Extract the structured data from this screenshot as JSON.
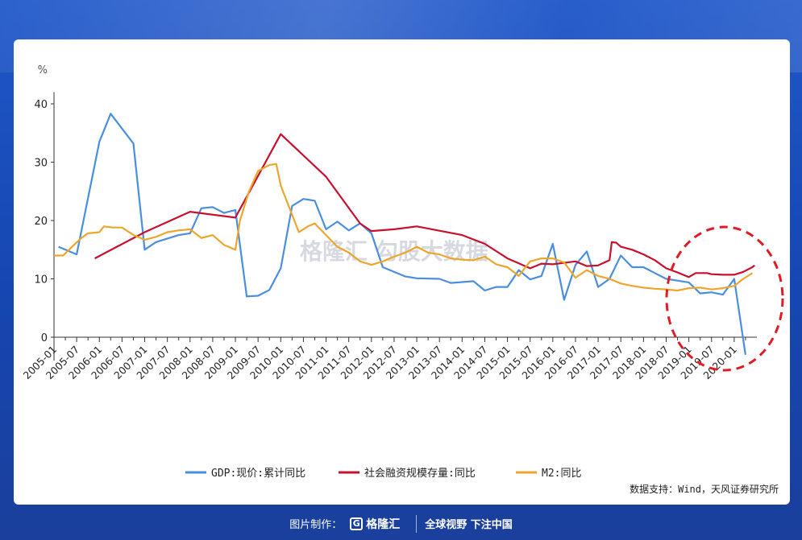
{
  "chart_data": {
    "type": "line",
    "y_unit": "%",
    "ylim": [
      -4,
      42
    ],
    "yticks": [
      0,
      10,
      20,
      30,
      40
    ],
    "x_ticks": [
      "2005-01",
      "2005-07",
      "2006-01",
      "2006-07",
      "2007-01",
      "2007-07",
      "2008-01",
      "2008-07",
      "2009-01",
      "2009-07",
      "2010-01",
      "2010-07",
      "2011-01",
      "2011-07",
      "2012-01",
      "2012-07",
      "2013-01",
      "2013-07",
      "2014-01",
      "2014-07",
      "2015-01",
      "2015-07",
      "2016-01",
      "2016-07",
      "2017-01",
      "2017-07",
      "2018-01",
      "2018-07",
      "2019-01",
      "2019-07",
      "2020-01"
    ],
    "series": [
      {
        "name": "GDP:现价:累计同比",
        "color": "#4a8fdf",
        "points": [
          [
            2005.1,
            15.5
          ],
          [
            2005.5,
            14.2
          ],
          [
            2006.0,
            33.5
          ],
          [
            2006.25,
            38.3
          ],
          [
            2006.75,
            33.2
          ],
          [
            2007.0,
            15.0
          ],
          [
            2007.25,
            16.3
          ],
          [
            2007.75,
            17.5
          ],
          [
            2008.0,
            17.8
          ],
          [
            2008.25,
            22.1
          ],
          [
            2008.5,
            22.3
          ],
          [
            2008.75,
            21.3
          ],
          [
            2009.0,
            21.8
          ],
          [
            2009.25,
            7.0
          ],
          [
            2009.5,
            7.1
          ],
          [
            2009.75,
            8.1
          ],
          [
            2010.0,
            11.8
          ],
          [
            2010.25,
            22.5
          ],
          [
            2010.5,
            23.7
          ],
          [
            2010.75,
            23.4
          ],
          [
            2011.0,
            18.5
          ],
          [
            2011.25,
            19.8
          ],
          [
            2011.5,
            18.3
          ],
          [
            2011.75,
            19.5
          ],
          [
            2012.0,
            17.8
          ],
          [
            2012.25,
            12.0
          ],
          [
            2012.75,
            10.4
          ],
          [
            2013.0,
            10.1
          ],
          [
            2013.5,
            10.0
          ],
          [
            2013.75,
            9.3
          ],
          [
            2014.25,
            9.6
          ],
          [
            2014.5,
            8.0
          ],
          [
            2014.75,
            8.6
          ],
          [
            2015.0,
            8.6
          ],
          [
            2015.25,
            11.5
          ],
          [
            2015.5,
            9.9
          ],
          [
            2015.75,
            10.5
          ],
          [
            2016.0,
            16.0
          ],
          [
            2016.25,
            6.4
          ],
          [
            2016.5,
            12.4
          ],
          [
            2016.75,
            14.7
          ],
          [
            2017.0,
            8.6
          ],
          [
            2017.25,
            10.0
          ],
          [
            2017.5,
            14.0
          ],
          [
            2017.75,
            12.0
          ],
          [
            2018.0,
            12.0
          ],
          [
            2018.25,
            11.0
          ],
          [
            2018.5,
            10.0
          ],
          [
            2018.75,
            9.7
          ],
          [
            2019.0,
            9.4
          ],
          [
            2019.25,
            7.5
          ],
          [
            2019.5,
            7.7
          ],
          [
            2019.75,
            7.3
          ],
          [
            2020.0,
            10.0
          ],
          [
            2020.25,
            -3.0
          ]
        ]
      },
      {
        "name": "社会融资规模存量:同比",
        "color": "#c8102e",
        "points": [
          [
            2005.9,
            13.5
          ],
          [
            2007.0,
            18.0
          ],
          [
            2008.0,
            21.5
          ],
          [
            2009.0,
            20.5
          ],
          [
            2010.0,
            34.8
          ],
          [
            2011.0,
            27.5
          ],
          [
            2011.75,
            19.5
          ],
          [
            2012.0,
            18.2
          ],
          [
            2012.5,
            18.5
          ],
          [
            2013.0,
            19.0
          ],
          [
            2014.0,
            17.5
          ],
          [
            2014.5,
            16.0
          ],
          [
            2015.0,
            13.5
          ],
          [
            2015.5,
            11.8
          ],
          [
            2015.75,
            12.6
          ],
          [
            2016.0,
            12.5
          ],
          [
            2016.5,
            13.0
          ],
          [
            2016.75,
            12.2
          ],
          [
            2017.0,
            12.3
          ],
          [
            2017.25,
            13.2
          ],
          [
            2017.3,
            16.3
          ],
          [
            2017.4,
            16.2
          ],
          [
            2017.5,
            15.5
          ],
          [
            2017.75,
            15.0
          ],
          [
            2018.0,
            14.2
          ],
          [
            2018.25,
            13.2
          ],
          [
            2018.5,
            11.8
          ],
          [
            2018.75,
            11.1
          ],
          [
            2019.0,
            10.3
          ],
          [
            2019.15,
            11.0
          ],
          [
            2019.4,
            11.0
          ],
          [
            2019.5,
            10.8
          ],
          [
            2019.75,
            10.7
          ],
          [
            2020.0,
            10.7
          ],
          [
            2020.2,
            11.2
          ],
          [
            2020.4,
            12.0
          ],
          [
            2020.45,
            12.3
          ]
        ]
      },
      {
        "name": "M2:同比",
        "color": "#eda62c",
        "points": [
          [
            2005.0,
            14.0
          ],
          [
            2005.2,
            14.0
          ],
          [
            2005.4,
            15.5
          ],
          [
            2005.6,
            17.0
          ],
          [
            2005.75,
            17.8
          ],
          [
            2006.0,
            18.0
          ],
          [
            2006.1,
            19.0
          ],
          [
            2006.3,
            18.8
          ],
          [
            2006.5,
            18.8
          ],
          [
            2006.75,
            17.5
          ],
          [
            2007.0,
            16.7
          ],
          [
            2007.25,
            17.2
          ],
          [
            2007.5,
            18.0
          ],
          [
            2007.75,
            18.3
          ],
          [
            2008.0,
            18.5
          ],
          [
            2008.25,
            17.0
          ],
          [
            2008.5,
            17.5
          ],
          [
            2008.75,
            15.8
          ],
          [
            2009.0,
            15.0
          ],
          [
            2009.1,
            20.0
          ],
          [
            2009.3,
            25.0
          ],
          [
            2009.5,
            28.5
          ],
          [
            2009.75,
            29.5
          ],
          [
            2009.9,
            29.7
          ],
          [
            2010.0,
            26.0
          ],
          [
            2010.2,
            22.0
          ],
          [
            2010.4,
            18.0
          ],
          [
            2010.6,
            19.0
          ],
          [
            2010.75,
            19.5
          ],
          [
            2011.0,
            17.5
          ],
          [
            2011.25,
            15.5
          ],
          [
            2011.5,
            14.5
          ],
          [
            2011.75,
            13.0
          ],
          [
            2012.0,
            12.4
          ],
          [
            2012.25,
            13.0
          ],
          [
            2012.5,
            13.8
          ],
          [
            2012.75,
            14.5
          ],
          [
            2013.0,
            15.5
          ],
          [
            2013.25,
            14.5
          ],
          [
            2013.5,
            14.2
          ],
          [
            2013.75,
            13.5
          ],
          [
            2014.0,
            13.3
          ],
          [
            2014.25,
            13.2
          ],
          [
            2014.5,
            13.8
          ],
          [
            2014.75,
            12.5
          ],
          [
            2015.0,
            12.0
          ],
          [
            2015.25,
            10.5
          ],
          [
            2015.5,
            13.0
          ],
          [
            2015.75,
            13.5
          ],
          [
            2016.0,
            13.5
          ],
          [
            2016.25,
            12.8
          ],
          [
            2016.5,
            10.2
          ],
          [
            2016.75,
            11.5
          ],
          [
            2017.0,
            10.5
          ],
          [
            2017.25,
            10.0
          ],
          [
            2017.5,
            9.2
          ],
          [
            2017.75,
            8.8
          ],
          [
            2018.0,
            8.5
          ],
          [
            2018.25,
            8.3
          ],
          [
            2018.5,
            8.2
          ],
          [
            2018.75,
            8.0
          ],
          [
            2019.0,
            8.4
          ],
          [
            2019.25,
            8.5
          ],
          [
            2019.5,
            8.2
          ],
          [
            2019.75,
            8.4
          ],
          [
            2020.0,
            8.8
          ],
          [
            2020.2,
            10.0
          ],
          [
            2020.4,
            11.0
          ]
        ]
      }
    ],
    "annotation": "dashed red circle highlighting 2019-2020"
  },
  "legend": [
    "GDP:现价:累计同比",
    "社会融资规模存量:同比",
    "M2:同比"
  ],
  "watermark": "格隆汇 勾股大数据",
  "source_text": "数据支持：Wind，天风证券研究所",
  "footer": {
    "made_by": "图片制作：",
    "brand": "格隆汇",
    "slogan": "全球视野 下注中国"
  }
}
